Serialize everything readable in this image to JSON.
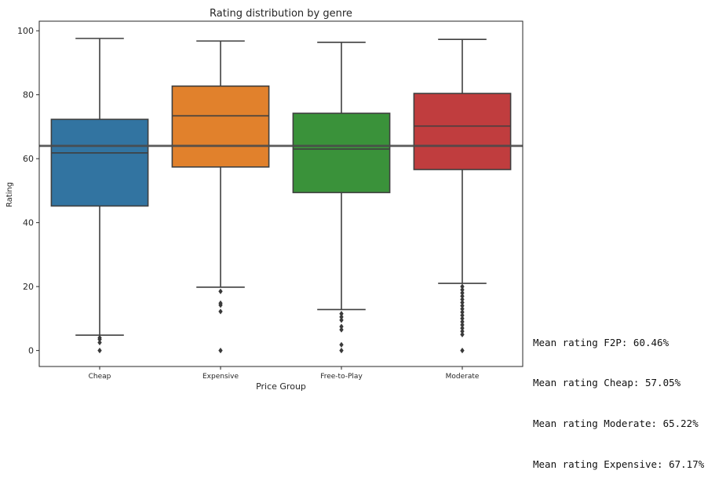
{
  "chart_data": {
    "type": "box",
    "title": "Rating distribution by genre",
    "xlabel": "Price Group",
    "ylabel": "Rating",
    "ylim": [
      -5,
      103
    ],
    "yticks": [
      0,
      20,
      40,
      60,
      80,
      100
    ],
    "reference_line": 64,
    "categories": [
      "Cheap",
      "Expensive",
      "Free-to-Play",
      "Moderate"
    ],
    "boxes": [
      {
        "label": "Cheap",
        "color": "#3274a1",
        "whisker_low": 4.8,
        "q1": 45.2,
        "median": 61.8,
        "q3": 72.3,
        "whisker_high": 97.6,
        "outliers": [
          0,
          2.5,
          3.5,
          4.0
        ]
      },
      {
        "label": "Expensive",
        "color": "#e1812c",
        "whisker_low": 19.8,
        "q1": 57.4,
        "median": 73.4,
        "q3": 82.7,
        "whisker_high": 96.8,
        "outliers": [
          0,
          12.2,
          14.2,
          14.8,
          18.5
        ]
      },
      {
        "label": "Free-to-Play",
        "color": "#3a923a",
        "whisker_low": 12.8,
        "q1": 49.4,
        "median": 63.0,
        "q3": 74.2,
        "whisker_high": 96.4,
        "outliers": [
          0,
          1.8,
          6.5,
          7.5,
          9.5,
          10.5,
          11.5
        ]
      },
      {
        "label": "Moderate",
        "color": "#c03d3e",
        "whisker_low": 21.0,
        "q1": 56.6,
        "median": 70.2,
        "q3": 80.4,
        "whisker_high": 97.3,
        "outliers": [
          0,
          5.0,
          6.0,
          7.0,
          8.0,
          9.0,
          10.0,
          11.0,
          12.0,
          13.0,
          14.0,
          15.0,
          16.0,
          17.0,
          18.0,
          19.0,
          20.0
        ]
      }
    ]
  },
  "mean_lines": [
    "Mean rating F2P: 60.46%",
    "Mean rating Cheap: 57.05%",
    "Mean rating Moderate: 65.22%",
    "Mean rating Expensive: 67.17%"
  ]
}
